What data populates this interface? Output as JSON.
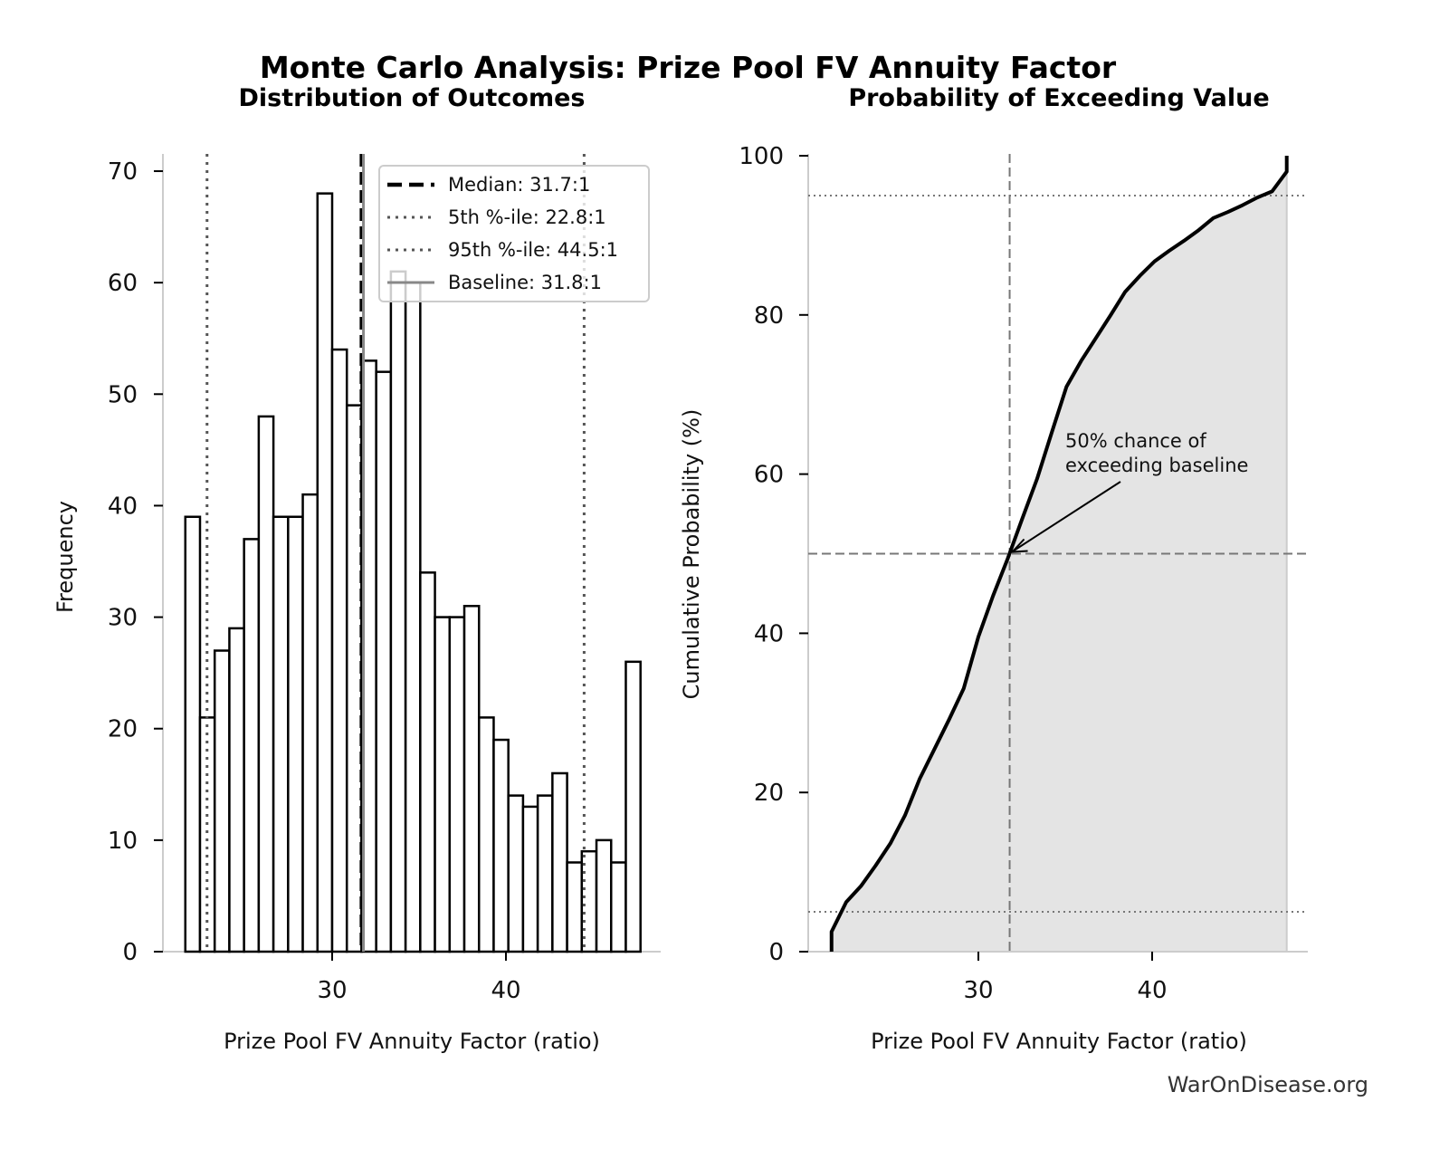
{
  "title": "Monte Carlo Analysis: Prize Pool FV Annuity Factor",
  "watermark": "WarOnDisease.org",
  "chart_data": [
    {
      "type": "bar",
      "subtitle": "Distribution of Outcomes",
      "xlabel": "Prize Pool FV Annuity Factor (ratio)",
      "ylabel": "Frequency",
      "bin_start": 21.55,
      "bin_width": 0.845,
      "values": [
        39,
        21,
        27,
        29,
        37,
        48,
        39,
        39,
        41,
        68,
        54,
        49,
        53,
        52,
        61,
        60,
        34,
        30,
        30,
        31,
        21,
        19,
        14,
        13,
        14,
        16,
        8,
        9,
        10,
        8,
        26
      ],
      "xticks": [
        30,
        40
      ],
      "yticks": [
        0,
        10,
        20,
        30,
        40,
        50,
        60,
        70
      ],
      "xlim": [
        20.5,
        48.7
      ],
      "ylim": [
        0,
        71.5
      ],
      "grid": false,
      "legend_position": "top-right",
      "lines": [
        {
          "label": "Median: 31.7:1",
          "x": 31.7,
          "style": "dashed",
          "color": "#000000"
        },
        {
          "label": "5th %-ile: 22.8:1",
          "x": 22.8,
          "style": "dotted",
          "color": "#555555"
        },
        {
          "label": "95th %-ile: 44.5:1",
          "x": 44.5,
          "style": "dotted",
          "color": "#555555"
        },
        {
          "label": "Baseline: 31.8:1",
          "x": 31.8,
          "style": "solid",
          "color": "#888888"
        }
      ]
    },
    {
      "type": "area",
      "subtitle": "Probability of Exceeding Value",
      "xlabel": "Prize Pool FV Annuity Factor (ratio)",
      "ylabel": "Cumulative Probability (%)",
      "xticks": [
        30,
        40
      ],
      "yticks": [
        0,
        20,
        40,
        60,
        80,
        100
      ],
      "xlim": [
        20.5,
        48.7
      ],
      "ylim": [
        0,
        100
      ],
      "fill_color": "#e4e4e4",
      "reference_lines": {
        "vertical_x": 31.8,
        "horizontal_y": [
          50,
          5,
          95
        ]
      },
      "annotation": {
        "text_line1": "50% chance of",
        "text_line2": "exceeding baseline",
        "point": [
          31.8,
          50
        ]
      }
    }
  ]
}
